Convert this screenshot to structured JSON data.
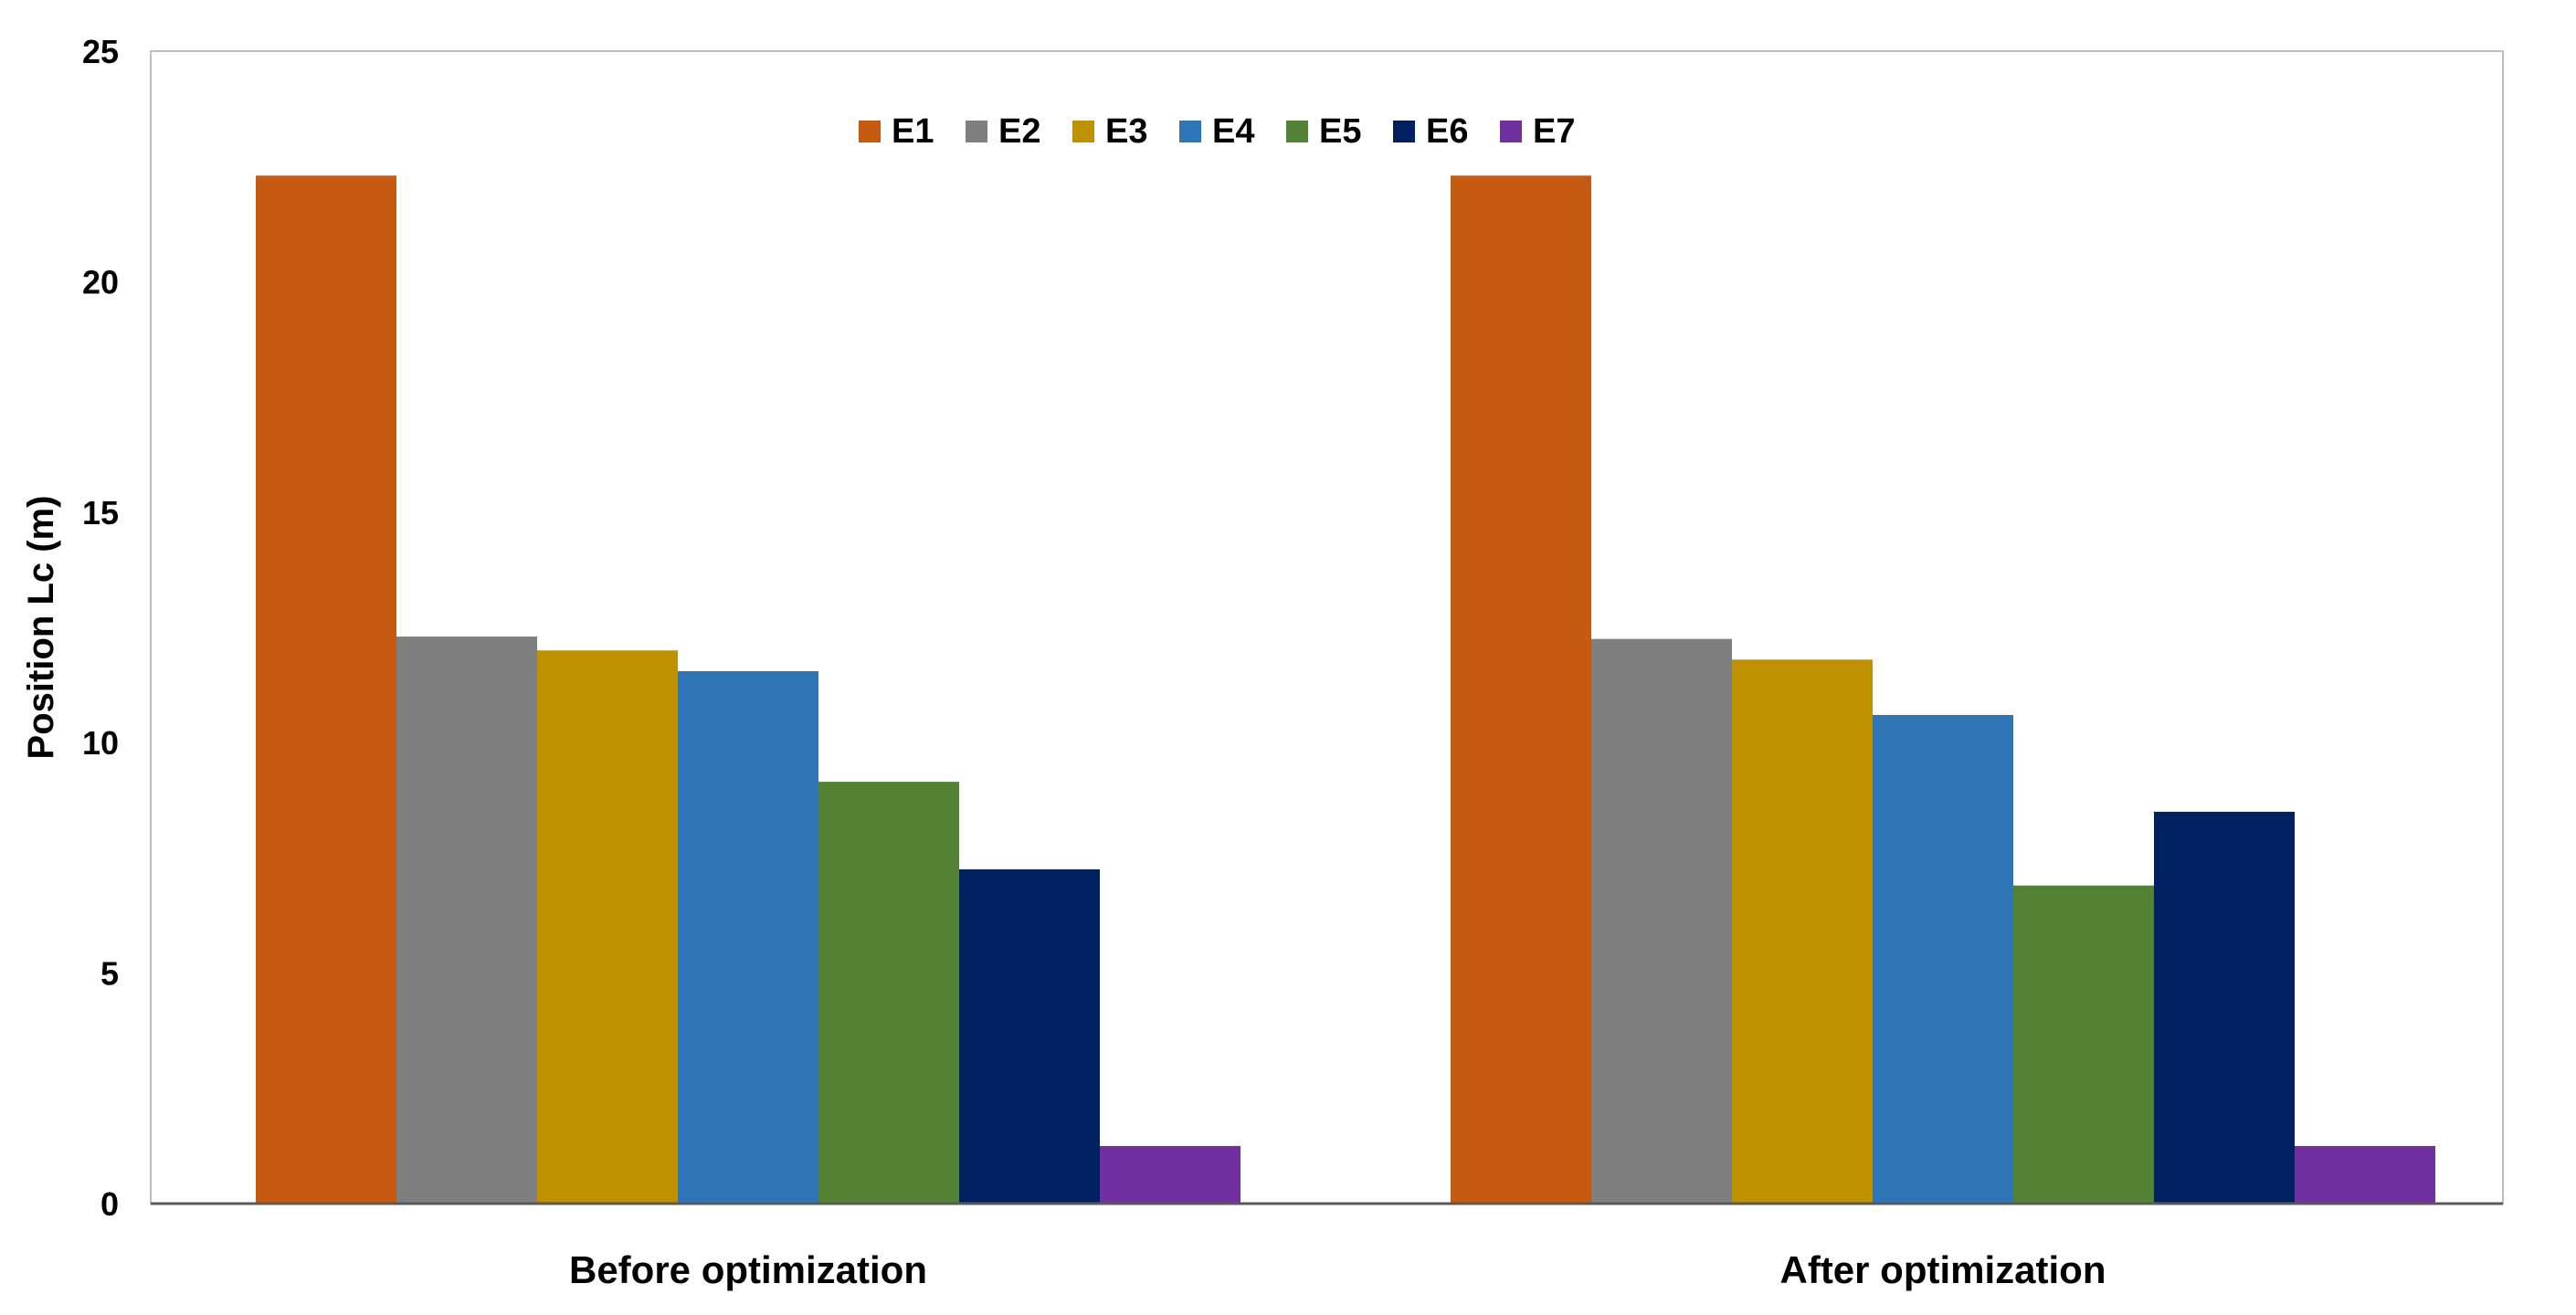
{
  "chart_data": {
    "type": "bar",
    "title": "",
    "xlabel": "",
    "ylabel": "Position Lc (m)",
    "ylim": [
      0,
      25
    ],
    "yticks": [
      0,
      5,
      10,
      15,
      20,
      25
    ],
    "grid": false,
    "legend_position": "top-center",
    "categories": [
      "Before optimization",
      "After optimization"
    ],
    "series": [
      {
        "name": "E1",
        "color": "#C55A11",
        "values": [
          22.3,
          22.3
        ]
      },
      {
        "name": "E2",
        "color": "#7F7F7F",
        "values": [
          12.3,
          12.25
        ]
      },
      {
        "name": "E3",
        "color": "#BF9000",
        "values": [
          12.0,
          11.8
        ]
      },
      {
        "name": "E4",
        "color": "#2E75B6",
        "values": [
          11.55,
          10.6
        ]
      },
      {
        "name": "E5",
        "color": "#548235",
        "values": [
          9.15,
          6.9
        ]
      },
      {
        "name": "E6",
        "color": "#002060",
        "values": [
          7.25,
          8.5
        ]
      },
      {
        "name": "E7",
        "color": "#7030A0",
        "values": [
          1.25,
          1.25
        ]
      }
    ]
  }
}
